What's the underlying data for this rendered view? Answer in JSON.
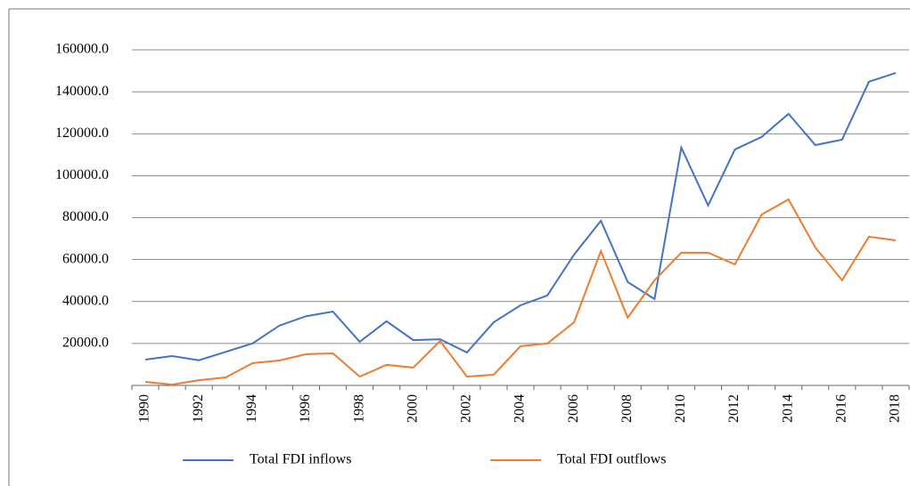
{
  "chart_data": {
    "type": "line",
    "categories": [
      "1990",
      null,
      "1992",
      null,
      "1994",
      null,
      "1996",
      null,
      "1998",
      null,
      "2000",
      null,
      "2002",
      null,
      "2004",
      null,
      "2006",
      null,
      "2008",
      null,
      "2010",
      null,
      "2012",
      null,
      "2014",
      null,
      "2016",
      null,
      "2018"
    ],
    "series": [
      {
        "name": "Total FDI inflows",
        "color": "#4472c4",
        "values": [
          12300,
          14000,
          12000,
          16000,
          20000,
          28500,
          33000,
          35200,
          20800,
          30600,
          21600,
          22000,
          15700,
          30100,
          38200,
          42900,
          62400,
          78500,
          49300,
          41200,
          113400,
          85800,
          112500,
          118500,
          129500,
          114600,
          117200,
          144800,
          149000
        ]
      },
      {
        "name": "Total FDI outflows",
        "color": "#ed7d31",
        "values": [
          1700,
          400,
          2500,
          3800,
          10600,
          11900,
          14900,
          15300,
          4200,
          9800,
          8500,
          21200,
          4200,
          5100,
          18700,
          20000,
          30100,
          64100,
          32300,
          50100,
          63300,
          63300,
          57700,
          81500,
          88700,
          65800,
          50100,
          70900,
          69200
        ]
      }
    ],
    "ylim": [
      0,
      160000
    ],
    "yticks": [
      {
        "value": 20000,
        "label": "20000.0"
      },
      {
        "value": 40000,
        "label": "40000.0"
      },
      {
        "value": 60000,
        "label": "60000.0"
      },
      {
        "value": 80000,
        "label": "80000.0"
      },
      {
        "value": 100000,
        "label": "100000.0"
      },
      {
        "value": 120000,
        "label": "120000.0"
      },
      {
        "value": 140000,
        "label": "140000.0"
      },
      {
        "value": 160000,
        "label": "160000.0"
      }
    ],
    "grid": true,
    "legend": "bottom"
  }
}
